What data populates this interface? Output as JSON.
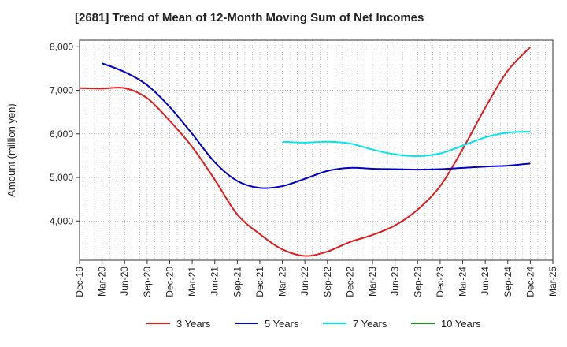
{
  "chart_data": {
    "type": "line",
    "title": "[2681]  Trend of Mean of 12-Month Moving Sum of Net Incomes",
    "ylabel": "Amount (million yen)",
    "xlabel": "",
    "ylim": [
      3100,
      8150
    ],
    "yticks": [
      4000,
      5000,
      6000,
      7000,
      8000
    ],
    "ytick_labels": [
      "4,000",
      "5,000",
      "6,000",
      "7,000",
      "8,000"
    ],
    "x_labels": [
      "Dec-19",
      "Mar-20",
      "Jun-20",
      "Sep-20",
      "Dec-20",
      "Mar-21",
      "Jun-21",
      "Sep-21",
      "Dec-21",
      "Mar-22",
      "Jun-22",
      "Sep-22",
      "Dec-22",
      "Mar-23",
      "Jun-23",
      "Sep-23",
      "Dec-23",
      "Mar-24",
      "Jun-24",
      "Sep-24",
      "Dec-24",
      "Mar-25"
    ],
    "grid": true,
    "legend_position": "bottom",
    "series": [
      {
        "name": "3 Years",
        "color": "#e41a1c",
        "x": [
          "Dec-19",
          "Mar-20",
          "Jun-20",
          "Sep-20",
          "Dec-20",
          "Mar-21",
          "Jun-21",
          "Sep-21",
          "Dec-21",
          "Mar-22",
          "Jun-22",
          "Sep-22",
          "Dec-22",
          "Mar-23",
          "Jun-23",
          "Sep-23",
          "Dec-23",
          "Mar-24",
          "Jun-24",
          "Sep-24",
          "Dec-24"
        ],
        "values": [
          7050,
          7040,
          7050,
          6820,
          6300,
          5700,
          4950,
          4150,
          3700,
          3350,
          3200,
          3300,
          3520,
          3680,
          3900,
          4260,
          4800,
          5650,
          6600,
          7450,
          7990
        ]
      },
      {
        "name": "5 Years",
        "color": "#0000cc",
        "x": [
          "Mar-20",
          "Jun-20",
          "Sep-20",
          "Dec-20",
          "Mar-21",
          "Jun-21",
          "Sep-21",
          "Dec-21",
          "Mar-22",
          "Jun-22",
          "Sep-22",
          "Dec-22",
          "Mar-23",
          "Jun-23",
          "Sep-23",
          "Dec-23",
          "Mar-24",
          "Jun-24",
          "Sep-24",
          "Dec-24"
        ],
        "values": [
          7620,
          7420,
          7120,
          6620,
          6000,
          5350,
          4920,
          4760,
          4800,
          4970,
          5150,
          5220,
          5200,
          5190,
          5180,
          5190,
          5220,
          5250,
          5270,
          5320
        ]
      },
      {
        "name": "7 Years",
        "color": "#00e5ee",
        "x": [
          "Mar-22",
          "Jun-22",
          "Sep-22",
          "Dec-22",
          "Mar-23",
          "Jun-23",
          "Sep-23",
          "Dec-23",
          "Mar-24",
          "Jun-24",
          "Sep-24",
          "Dec-24"
        ],
        "values": [
          5820,
          5800,
          5820,
          5780,
          5640,
          5530,
          5490,
          5550,
          5730,
          5920,
          6030,
          6050
        ]
      },
      {
        "name": "10 Years",
        "color": "#228b22",
        "x": [],
        "values": []
      }
    ]
  }
}
